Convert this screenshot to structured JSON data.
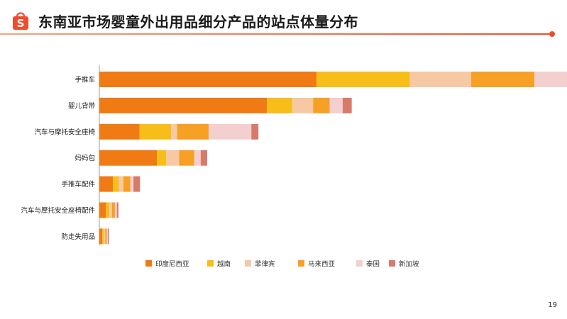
{
  "page": {
    "title": "东南亚市场婴童外出用品细分产品的站点体量分布",
    "page_number": "19",
    "logo": "shopee-bag-icon"
  },
  "colors": {
    "accent": "#ee4d2d",
    "series": [
      "#f07a14",
      "#f7be19",
      "#f6c9a4",
      "#f7a026",
      "#f4cfd0",
      "#d77a6b"
    ]
  },
  "chart_data": {
    "type": "bar",
    "orientation": "horizontal",
    "stacked": true,
    "title": "东南亚市场婴童外出用品细分产品的站点体量分布",
    "xlabel": "",
    "ylabel": "",
    "grid": false,
    "legend_position": "bottom",
    "xlim": [
      0,
      100
    ],
    "categories": [
      "手推车",
      "婴儿背带",
      "汽车与摩托安全座椅",
      "妈妈包",
      "手推车配件",
      "汽车与摩托安全座椅配件",
      "防走失用品"
    ],
    "series": [
      {
        "name": "印度尼西亚",
        "values": [
          43.3,
          33.4,
          8.0,
          11.5,
          2.7,
          1.3,
          0.6
        ]
      },
      {
        "name": "越南",
        "values": [
          18.6,
          5.0,
          6.3,
          1.8,
          1.2,
          0.7,
          0.3
        ]
      },
      {
        "name": "菲律宾",
        "values": [
          12.2,
          4.2,
          1.2,
          2.6,
          0.9,
          0.5,
          0.3
        ]
      },
      {
        "name": "马来西亚",
        "values": [
          12.6,
          3.3,
          6.3,
          3.0,
          1.4,
          0.6,
          0.3
        ]
      },
      {
        "name": "泰国",
        "values": [
          8.6,
          2.6,
          8.5,
          1.3,
          0.6,
          0.4,
          0.2
        ]
      },
      {
        "name": "新加坡",
        "values": [
          3.5,
          1.8,
          1.4,
          1.3,
          1.3,
          0.3,
          0.2
        ]
      }
    ]
  }
}
